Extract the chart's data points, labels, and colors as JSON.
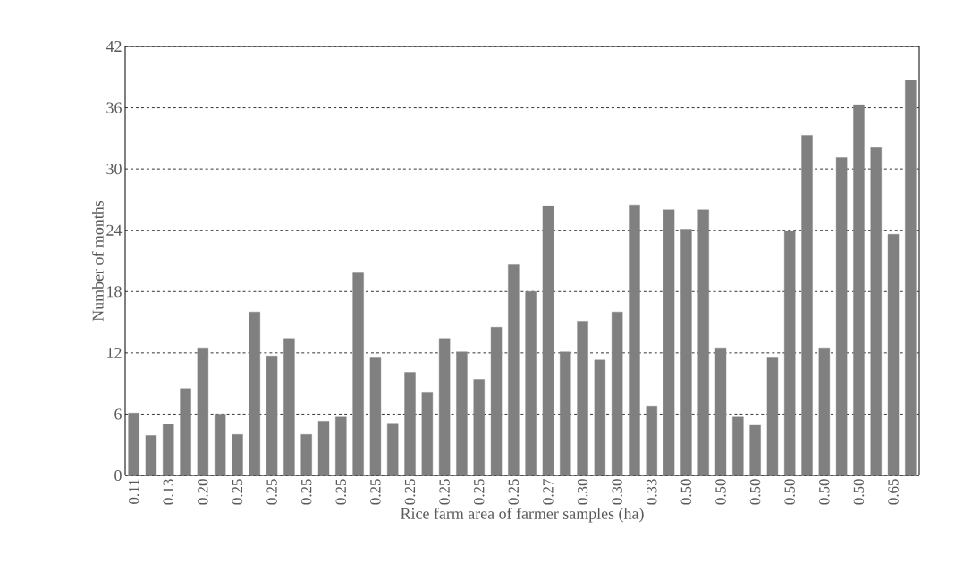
{
  "chart_data": {
    "type": "bar",
    "xlabel": "Rice farm area of farmer samples (ha)",
    "ylabel": "Number of months",
    "categories": [
      "0.11",
      null,
      "0.13",
      null,
      "0.20",
      null,
      "0.25",
      null,
      "0.25",
      null,
      "0.25",
      null,
      "0.25",
      null,
      "0.25",
      null,
      "0.25",
      null,
      "0.25",
      null,
      "0.25",
      null,
      "0.25",
      null,
      "0.27",
      null,
      "0.30",
      null,
      "0.30",
      null,
      "0.33",
      null,
      "0.50",
      null,
      "0.50",
      null,
      "0.50",
      null,
      "0.50",
      null,
      "0.50",
      null,
      "0.50",
      null,
      "0.65",
      null
    ],
    "values": [
      6.1,
      3.9,
      5.0,
      8.5,
      12.5,
      6.0,
      4.0,
      16.0,
      11.7,
      13.4,
      4.0,
      5.3,
      5.7,
      19.9,
      11.5,
      5.1,
      10.1,
      8.1,
      13.4,
      12.1,
      9.4,
      14.5,
      20.7,
      18.0,
      26.4,
      12.1,
      15.1,
      11.3,
      16.0,
      26.5,
      6.8,
      26.0,
      24.1,
      26.0,
      12.5,
      5.7,
      4.9,
      11.5,
      23.9,
      33.3,
      12.5,
      31.1,
      36.3,
      32.1,
      23.6,
      38.7
    ],
    "color": "#808080",
    "ylim": [
      0,
      42
    ],
    "yticks": [
      0,
      6,
      12,
      18,
      24,
      30,
      36,
      42
    ],
    "grid": "y"
  }
}
